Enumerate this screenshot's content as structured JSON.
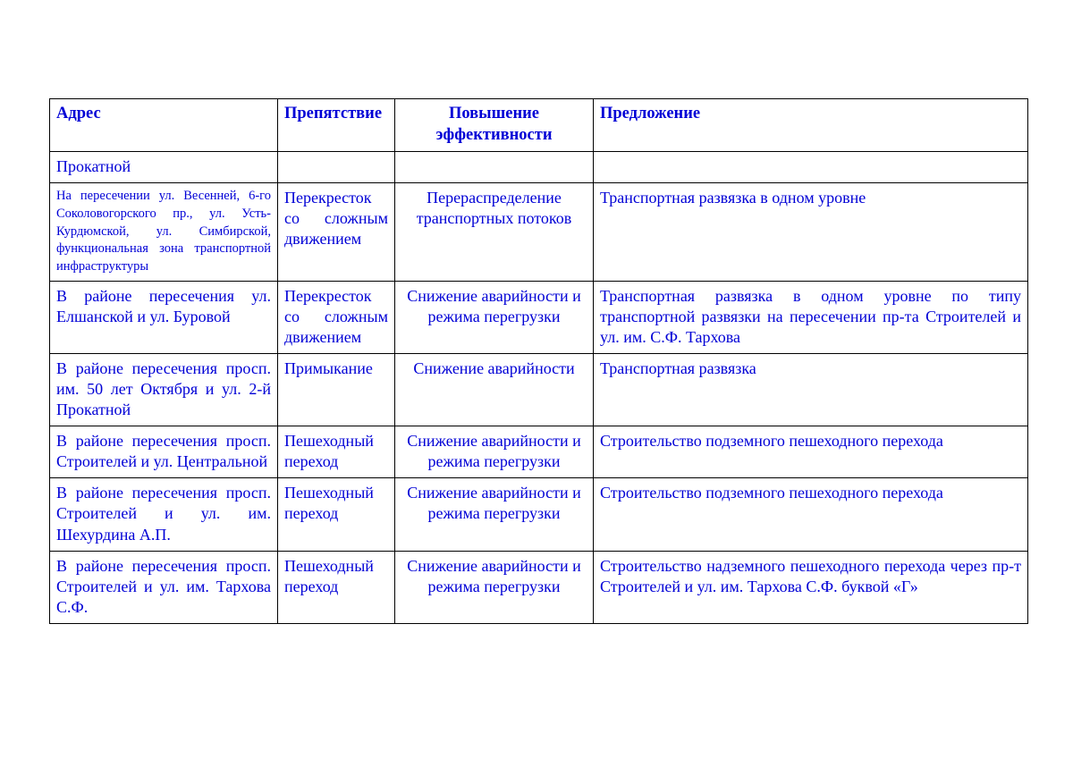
{
  "columns": {
    "c1": "Адрес",
    "c2": "Препятствие",
    "c3": "Повышение эффективности",
    "c4": "Предложение"
  },
  "rows": [
    {
      "c1": "Прокатной",
      "c2": "",
      "c3": "",
      "c4": ""
    },
    {
      "c1": "На пересечении ул. Весенней, 6-го Соколовогорского пр., ул. Усть-Курдюмской, ул. Симбирской, функциональная зона транспортной инфраструктуры",
      "c2": "Перекресток со сложным движением",
      "c3": "Перераспределение транспортных потоков",
      "c4": "Транспортная развязка в одном уровне"
    },
    {
      "c1": "В районе пересечения ул. Елшанской и ул. Буровой",
      "c2": "Перекресток со сложным движением",
      "c3": "Снижение аварийности и режима перегрузки",
      "c4": "Транспортная развязка в одном уровне по типу транспортной развязки на пересечении пр-та Строителей и ул. им. С.Ф. Тархова"
    },
    {
      "c1": "В районе пересечения просп. им. 50 лет Октября и ул. 2-й Прокатной",
      "c2": "Примыкание",
      "c3": "Снижение аварийности",
      "c4": "Транспортная развязка"
    },
    {
      "c1": "В районе пересечения просп. Строителей и ул. Центральной",
      "c2": "Пешеходный переход",
      "c3": "Снижение аварийности и режима перегрузки",
      "c4": "Строительство подземного пешеходного перехода"
    },
    {
      "c1": "В районе пересечения просп. Строителей и ул. им. Шехурдина А.П.",
      "c2": "Пешеходный переход",
      "c3": "Снижение аварийности и режима перегрузки",
      "c4": "Строительство подземного пешеходного перехода"
    },
    {
      "c1": "В районе пересечения просп. Строителей и ул. им. Тархова С.Ф.",
      "c2": "Пешеходный переход",
      "c3": "Снижение аварийности и режима перегрузки",
      "c4": "Строительство надземного пешеходного перехода через пр-т Строителей и ул. им. Тархова С.Ф. буквой «Г»"
    }
  ]
}
